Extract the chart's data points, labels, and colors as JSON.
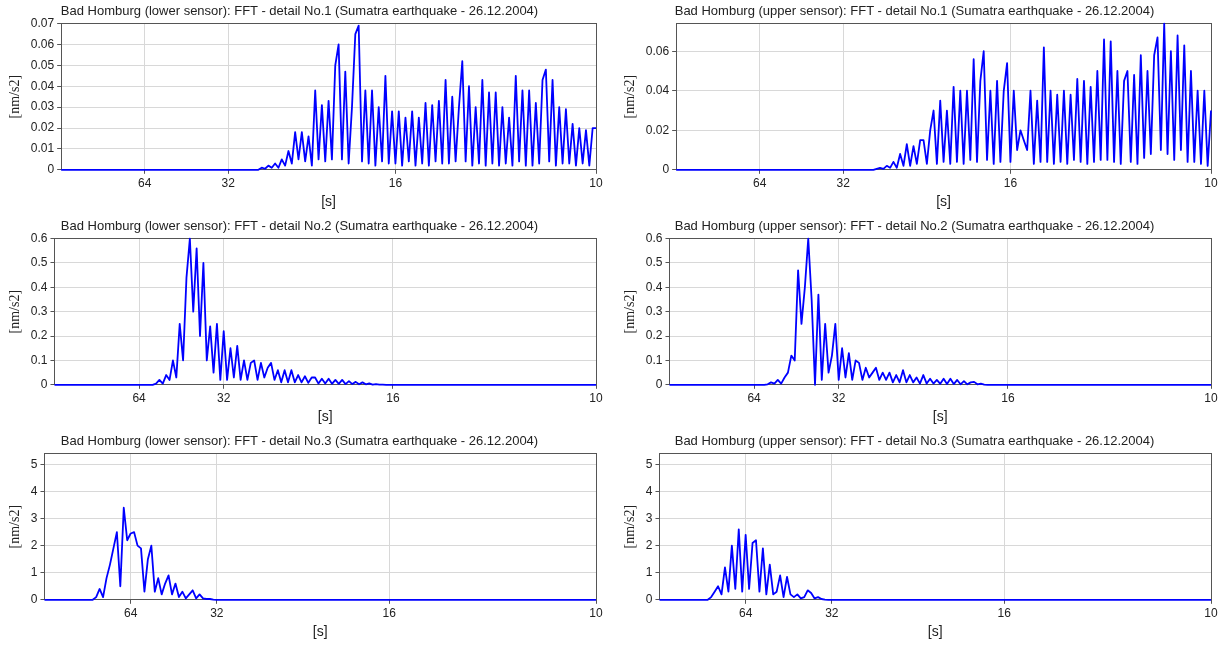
{
  "chart_data": [
    {
      "type": "line",
      "title": "Bad Homburg (lower sensor): FFT - detail No.1 (Sumatra earthquake - 26.12.2004)",
      "xlabel": "[s]",
      "ylabel": "[nm/s2]",
      "ylim": [
        0,
        0.07
      ],
      "yticks": [
        0,
        0.01,
        0.02,
        0.03,
        0.04,
        0.05,
        0.06,
        0.07
      ],
      "grid": true,
      "marker": "none",
      "categories": [
        null,
        null,
        null,
        null,
        null,
        null,
        null,
        null,
        null,
        null,
        null,
        null,
        null,
        null,
        null,
        null,
        null,
        null,
        null,
        null,
        null,
        null,
        null,
        null,
        null,
        "64",
        null,
        null,
        null,
        null,
        null,
        null,
        null,
        null,
        null,
        null,
        null,
        null,
        null,
        null,
        null,
        null,
        null,
        null,
        null,
        null,
        null,
        null,
        null,
        null,
        "32",
        null,
        null,
        null,
        null,
        null,
        null,
        null,
        null,
        null,
        null,
        null,
        null,
        null,
        null,
        null,
        null,
        null,
        null,
        null,
        null,
        null,
        null,
        null,
        null,
        null,
        null,
        null,
        null,
        null,
        null,
        null,
        null,
        null,
        null,
        null,
        null,
        null,
        null,
        null,
        null,
        null,
        null,
        null,
        null,
        null,
        null,
        null,
        null,
        null,
        "16",
        null,
        null,
        null,
        null,
        null,
        null,
        null,
        null,
        null,
        null,
        null,
        null,
        null,
        null,
        null,
        null,
        null,
        null,
        null,
        null,
        null,
        null,
        null,
        null,
        null,
        null,
        null,
        null,
        null,
        null,
        null,
        null,
        null,
        null,
        null,
        null,
        null,
        null,
        null,
        null,
        null,
        null,
        null,
        null,
        null,
        null,
        null,
        null,
        null,
        null,
        null,
        null,
        null,
        null,
        null,
        null,
        null,
        null,
        null,
        "10"
      ],
      "series": [
        {
          "color": "#0000ff",
          "values": [
            0,
            0,
            0,
            0,
            0,
            0,
            0,
            0,
            0,
            0,
            0,
            0,
            0,
            0,
            0,
            0,
            0,
            0,
            0,
            0,
            0,
            0,
            0,
            0,
            0,
            0,
            0,
            0,
            0,
            0,
            0,
            0,
            0,
            0,
            0,
            0,
            0,
            0,
            0,
            0,
            0,
            0,
            0,
            0,
            0,
            0,
            0,
            0,
            0,
            0,
            0,
            0,
            0,
            0,
            0,
            0,
            0,
            0,
            0,
            0,
            0.001,
            0.0005,
            0.002,
            0.001,
            0.003,
            0.001,
            0.005,
            0.002,
            0.009,
            0.003,
            0.018,
            0.005,
            0.018,
            0.004,
            0.016,
            0.002,
            0.038,
            0.005,
            0.031,
            0.004,
            0.033,
            0.005,
            0.05,
            0.06,
            0.005,
            0.047,
            0.003,
            0.03,
            0.065,
            0.069,
            0.004,
            0.038,
            0.003,
            0.038,
            0.002,
            0.03,
            0.004,
            0.045,
            0.003,
            0.028,
            0.003,
            0.028,
            0.002,
            0.025,
            0.004,
            0.028,
            0.002,
            0.025,
            0.003,
            0.032,
            0.002,
            0.031,
            0.004,
            0.033,
            0.003,
            0.043,
            0.003,
            0.035,
            0.004,
            0.03,
            0.052,
            0.004,
            0.04,
            0.002,
            0.03,
            0.003,
            0.043,
            0.002,
            0.037,
            0.003,
            0.037,
            0.002,
            0.03,
            0.003,
            0.025,
            0.002,
            0.045,
            0.004,
            0.038,
            0.002,
            0.038,
            0.002,
            0.032,
            0.003,
            0.043,
            0.048,
            0.004,
            0.043,
            0.002,
            0.03,
            0.003,
            0.029,
            0.003,
            0.022,
            0.002,
            0.02,
            0.003,
            0.019,
            0.002,
            0.02,
            0.02
          ]
        }
      ]
    },
    {
      "type": "line",
      "title": "Bad Homburg (upper sensor): FFT - detail No.1 (Sumatra earthquake - 26.12.2004)",
      "xlabel": "[s]",
      "ylabel": "[nm/s2]",
      "ylim": [
        0,
        0.074
      ],
      "yticks": [
        0,
        0.02,
        0.04,
        0.06
      ],
      "grid": true,
      "marker": "none",
      "categories": [
        null,
        null,
        null,
        null,
        null,
        null,
        null,
        null,
        null,
        null,
        null,
        null,
        null,
        null,
        null,
        null,
        null,
        null,
        null,
        null,
        null,
        null,
        null,
        null,
        null,
        "64",
        null,
        null,
        null,
        null,
        null,
        null,
        null,
        null,
        null,
        null,
        null,
        null,
        null,
        null,
        null,
        null,
        null,
        null,
        null,
        null,
        null,
        null,
        null,
        null,
        "32",
        null,
        null,
        null,
        null,
        null,
        null,
        null,
        null,
        null,
        null,
        null,
        null,
        null,
        null,
        null,
        null,
        null,
        null,
        null,
        null,
        null,
        null,
        null,
        null,
        null,
        null,
        null,
        null,
        null,
        null,
        null,
        null,
        null,
        null,
        null,
        null,
        null,
        null,
        null,
        null,
        null,
        null,
        null,
        null,
        null,
        null,
        null,
        null,
        null,
        "16",
        null,
        null,
        null,
        null,
        null,
        null,
        null,
        null,
        null,
        null,
        null,
        null,
        null,
        null,
        null,
        null,
        null,
        null,
        null,
        null,
        null,
        null,
        null,
        null,
        null,
        null,
        null,
        null,
        null,
        null,
        null,
        null,
        null,
        null,
        null,
        null,
        null,
        null,
        null,
        null,
        null,
        null,
        null,
        null,
        null,
        null,
        null,
        null,
        null,
        null,
        null,
        null,
        null,
        null,
        null,
        null,
        null,
        null,
        null,
        "10"
      ],
      "series": [
        {
          "color": "#0000ff",
          "values": [
            0,
            0,
            0,
            0,
            0,
            0,
            0,
            0,
            0,
            0,
            0,
            0,
            0,
            0,
            0,
            0,
            0,
            0,
            0,
            0,
            0,
            0,
            0,
            0,
            0,
            0,
            0,
            0,
            0,
            0,
            0,
            0,
            0,
            0,
            0,
            0,
            0,
            0,
            0,
            0,
            0,
            0,
            0,
            0,
            0,
            0,
            0,
            0,
            0,
            0,
            0,
            0,
            0,
            0,
            0,
            0,
            0,
            0,
            0,
            0,
            0.0005,
            0.001,
            0.0005,
            0.002,
            0.001,
            0.004,
            0.001,
            0.008,
            0.002,
            0.013,
            0.002,
            0.012,
            0.003,
            0.015,
            0.015,
            0.003,
            0.02,
            0.03,
            0.003,
            0.035,
            0.004,
            0.03,
            0.003,
            0.042,
            0.004,
            0.04,
            0.003,
            0.04,
            0.005,
            0.056,
            0.004,
            0.045,
            0.06,
            0.005,
            0.04,
            0.003,
            0.045,
            0.004,
            0.04,
            0.054,
            0.004,
            0.04,
            0.01,
            0.02,
            0.015,
            0.01,
            0.04,
            0.003,
            0.035,
            0.004,
            0.062,
            0.004,
            0.04,
            0.003,
            0.038,
            0.004,
            0.04,
            0.003,
            0.038,
            0.005,
            0.046,
            0.004,
            0.045,
            0.003,
            0.042,
            0.004,
            0.05,
            0.005,
            0.066,
            0.005,
            0.065,
            0.004,
            0.05,
            0.003,
            0.045,
            0.05,
            0.004,
            0.048,
            0.003,
            0.058,
            0.006,
            0.05,
            0.008,
            0.058,
            0.067,
            0.01,
            0.074,
            0.008,
            0.06,
            0.005,
            0.068,
            0.01,
            0.063,
            0.004,
            0.05,
            0.004,
            0.04,
            0.003,
            0.04,
            0.002,
            0.03
          ]
        }
      ]
    },
    {
      "type": "line",
      "title": "Bad Homburg (lower sensor): FFT - detail No.2 (Sumatra earthquake - 26.12.2004)",
      "xlabel": "[s]",
      "ylabel": "[nm/s2]",
      "ylim": [
        0,
        0.6
      ],
      "yticks": [
        0,
        0.1,
        0.2,
        0.3,
        0.4,
        0.5,
        0.6
      ],
      "grid": true,
      "marker": "none",
      "categories": [
        null,
        null,
        null,
        null,
        null,
        null,
        null,
        null,
        null,
        null,
        null,
        null,
        null,
        null,
        null,
        null,
        null,
        null,
        null,
        null,
        null,
        null,
        null,
        null,
        null,
        "64",
        null,
        null,
        null,
        null,
        null,
        null,
        null,
        null,
        null,
        null,
        null,
        null,
        null,
        null,
        null,
        null,
        null,
        null,
        null,
        null,
        null,
        null,
        null,
        null,
        "32",
        null,
        null,
        null,
        null,
        null,
        null,
        null,
        null,
        null,
        null,
        null,
        null,
        null,
        null,
        null,
        null,
        null,
        null,
        null,
        null,
        null,
        null,
        null,
        null,
        null,
        null,
        null,
        null,
        null,
        null,
        null,
        null,
        null,
        null,
        null,
        null,
        null,
        null,
        null,
        null,
        null,
        null,
        null,
        null,
        null,
        null,
        null,
        null,
        null,
        "16",
        null,
        null,
        null,
        null,
        null,
        null,
        null,
        null,
        null,
        null,
        null,
        null,
        null,
        null,
        null,
        null,
        null,
        null,
        null,
        null,
        null,
        null,
        null,
        null,
        null,
        null,
        null,
        null,
        null,
        null,
        null,
        null,
        null,
        null,
        null,
        null,
        null,
        null,
        null,
        null,
        null,
        null,
        null,
        null,
        null,
        null,
        null,
        null,
        null,
        null,
        null,
        null,
        null,
        null,
        null,
        null,
        null,
        null,
        null,
        "10"
      ],
      "series": [
        {
          "color": "#0000ff",
          "values": [
            0,
            0,
            0,
            0,
            0,
            0,
            0,
            0,
            0,
            0,
            0,
            0,
            0,
            0,
            0,
            0,
            0,
            0,
            0,
            0,
            0,
            0,
            0,
            0,
            0,
            0,
            0,
            0,
            0,
            0,
            0.005,
            0.02,
            0.005,
            0.04,
            0.02,
            0.1,
            0.03,
            0.25,
            0.1,
            0.44,
            0.6,
            0.3,
            0.56,
            0.2,
            0.5,
            0.1,
            0.24,
            0.05,
            0.25,
            0.02,
            0.22,
            0.02,
            0.15,
            0.03,
            0.16,
            0.02,
            0.1,
            0.02,
            0.09,
            0.1,
            0.02,
            0.09,
            0.03,
            0.07,
            0.09,
            0.02,
            0.06,
            0.01,
            0.06,
            0.01,
            0.06,
            0.01,
            0.04,
            0.01,
            0.035,
            0.008,
            0.03,
            0.03,
            0.005,
            0.025,
            0.005,
            0.025,
            0.004,
            0.02,
            0.004,
            0.02,
            0.003,
            0.015,
            0.003,
            0.012,
            0.002,
            0.01,
            0.002,
            0.006,
            0.001,
            0.003,
            0.001,
            0.001,
            0,
            0,
            0,
            0,
            0,
            0,
            0,
            0,
            0,
            0,
            0,
            0,
            0,
            0,
            0,
            0,
            0,
            0,
            0,
            0,
            0,
            0,
            0,
            0,
            0,
            0,
            0,
            0,
            0,
            0,
            0,
            0,
            0,
            0,
            0,
            0,
            0,
            0,
            0,
            0,
            0,
            0,
            0,
            0,
            0,
            0,
            0,
            0,
            0,
            0,
            0,
            0,
            0,
            0,
            0,
            0,
            0,
            0,
            0,
            0,
            0,
            0,
            0
          ]
        }
      ]
    },
    {
      "type": "line",
      "title": "Bad Homburg (upper sensor): FFT - detail No.2 (Sumatra earthquake - 26.12.2004)",
      "xlabel": "[s]",
      "ylabel": "[nm/s2]",
      "ylim": [
        0,
        0.6
      ],
      "yticks": [
        0,
        0.1,
        0.2,
        0.3,
        0.4,
        0.5,
        0.6
      ],
      "grid": true,
      "marker": "none",
      "categories": [
        null,
        null,
        null,
        null,
        null,
        null,
        null,
        null,
        null,
        null,
        null,
        null,
        null,
        null,
        null,
        null,
        null,
        null,
        null,
        null,
        null,
        null,
        null,
        null,
        null,
        "64",
        null,
        null,
        null,
        null,
        null,
        null,
        null,
        null,
        null,
        null,
        null,
        null,
        null,
        null,
        null,
        null,
        null,
        null,
        null,
        null,
        null,
        null,
        null,
        null,
        "32",
        null,
        null,
        null,
        null,
        null,
        null,
        null,
        null,
        null,
        null,
        null,
        null,
        null,
        null,
        null,
        null,
        null,
        null,
        null,
        null,
        null,
        null,
        null,
        null,
        null,
        null,
        null,
        null,
        null,
        null,
        null,
        null,
        null,
        null,
        null,
        null,
        null,
        null,
        null,
        null,
        null,
        null,
        null,
        null,
        null,
        null,
        null,
        null,
        null,
        "16",
        null,
        null,
        null,
        null,
        null,
        null,
        null,
        null,
        null,
        null,
        null,
        null,
        null,
        null,
        null,
        null,
        null,
        null,
        null,
        null,
        null,
        null,
        null,
        null,
        null,
        null,
        null,
        null,
        null,
        null,
        null,
        null,
        null,
        null,
        null,
        null,
        null,
        null,
        null,
        null,
        null,
        null,
        null,
        null,
        null,
        null,
        null,
        null,
        null,
        null,
        null,
        null,
        null,
        null,
        null,
        null,
        null,
        null,
        null,
        "10"
      ],
      "series": [
        {
          "color": "#0000ff",
          "values": [
            0,
            0,
            0,
            0,
            0,
            0,
            0,
            0,
            0,
            0,
            0,
            0,
            0,
            0,
            0,
            0,
            0,
            0,
            0,
            0,
            0,
            0,
            0,
            0,
            0,
            0,
            0,
            0,
            0,
            0.002,
            0.01,
            0.005,
            0.02,
            0.005,
            0.03,
            0.05,
            0.12,
            0.1,
            0.47,
            0.25,
            0.4,
            0.6,
            0.35,
            0,
            0.37,
            0.02,
            0.25,
            0.05,
            0.12,
            0.25,
            0.02,
            0.15,
            0.03,
            0.13,
            0.02,
            0.1,
            0.09,
            0.02,
            0.07,
            0.03,
            0.05,
            0.07,
            0.02,
            0.05,
            0.02,
            0.05,
            0.01,
            0.04,
            0.01,
            0.06,
            0.01,
            0.04,
            0.01,
            0.03,
            0.005,
            0.04,
            0.005,
            0.025,
            0.005,
            0.02,
            0.004,
            0.025,
            0.003,
            0.025,
            0.003,
            0.02,
            0.002,
            0.015,
            0.002,
            0.01,
            0.012,
            0.002,
            0.005,
            0.001,
            0,
            0,
            0,
            0,
            0,
            0,
            0,
            0,
            0,
            0,
            0,
            0,
            0,
            0,
            0,
            0,
            0,
            0,
            0,
            0,
            0,
            0,
            0,
            0,
            0,
            0,
            0,
            0,
            0,
            0,
            0,
            0,
            0,
            0,
            0,
            0,
            0,
            0,
            0,
            0,
            0,
            0,
            0,
            0,
            0,
            0,
            0,
            0,
            0,
            0,
            0,
            0,
            0,
            0,
            0,
            0,
            0,
            0,
            0,
            0,
            0,
            0,
            0,
            0,
            0,
            0,
            0
          ]
        }
      ]
    },
    {
      "type": "line",
      "title": "Bad Homburg (lower sensor): FFT - detail No.3 (Sumatra earthquake - 26.12.2004)",
      "xlabel": "[s]",
      "ylabel": "[nm/s2]",
      "ylim": [
        0,
        5.4
      ],
      "yticks": [
        0,
        1,
        2,
        3,
        4,
        5
      ],
      "grid": true,
      "marker": "none",
      "categories": [
        null,
        null,
        null,
        null,
        null,
        null,
        null,
        null,
        null,
        null,
        null,
        null,
        null,
        null,
        null,
        null,
        null,
        null,
        null,
        null,
        null,
        null,
        null,
        null,
        null,
        "64",
        null,
        null,
        null,
        null,
        null,
        null,
        null,
        null,
        null,
        null,
        null,
        null,
        null,
        null,
        null,
        null,
        null,
        null,
        null,
        null,
        null,
        null,
        null,
        null,
        "32",
        null,
        null,
        null,
        null,
        null,
        null,
        null,
        null,
        null,
        null,
        null,
        null,
        null,
        null,
        null,
        null,
        null,
        null,
        null,
        null,
        null,
        null,
        null,
        null,
        null,
        null,
        null,
        null,
        null,
        null,
        null,
        null,
        null,
        null,
        null,
        null,
        null,
        null,
        null,
        null,
        null,
        null,
        null,
        null,
        null,
        null,
        null,
        null,
        null,
        "16",
        null,
        null,
        null,
        null,
        null,
        null,
        null,
        null,
        null,
        null,
        null,
        null,
        null,
        null,
        null,
        null,
        null,
        null,
        null,
        null,
        null,
        null,
        null,
        null,
        null,
        null,
        null,
        null,
        null,
        null,
        null,
        null,
        null,
        null,
        null,
        null,
        null,
        null,
        null,
        null,
        null,
        null,
        null,
        null,
        null,
        null,
        null,
        null,
        null,
        null,
        null,
        null,
        null,
        null,
        null,
        null,
        null,
        null,
        null,
        "10"
      ],
      "series": [
        {
          "color": "#0000ff",
          "values": [
            0,
            0,
            0,
            0,
            0,
            0,
            0,
            0,
            0,
            0,
            0,
            0,
            0,
            0,
            0,
            0.1,
            0.4,
            0.1,
            0.8,
            1.3,
            1.9,
            2.5,
            0.5,
            3.4,
            2.2,
            2.45,
            2.5,
            2.0,
            1.9,
            0.3,
            1.5,
            2.0,
            0.3,
            0.8,
            0.2,
            0.6,
            0.9,
            0.2,
            0.6,
            0.1,
            0.3,
            0.05,
            0.2,
            0.35,
            0.05,
            0.2,
            0.05,
            0.03,
            0.03,
            0.01,
            0,
            0,
            0,
            0,
            0,
            0,
            0,
            0,
            0,
            0,
            0,
            0,
            0,
            0,
            0,
            0,
            0,
            0,
            0,
            0,
            0,
            0,
            0,
            0,
            0,
            0,
            0,
            0,
            0,
            0,
            0,
            0,
            0,
            0,
            0,
            0,
            0,
            0,
            0,
            0,
            0,
            0,
            0,
            0,
            0,
            0,
            0,
            0,
            0,
            0,
            0,
            0,
            0,
            0,
            0,
            0,
            0,
            0,
            0,
            0,
            0,
            0,
            0,
            0,
            0,
            0,
            0,
            0,
            0,
            0,
            0,
            0,
            0,
            0,
            0,
            0,
            0,
            0,
            0,
            0,
            0,
            0,
            0,
            0,
            0,
            0,
            0,
            0,
            0,
            0,
            0,
            0,
            0,
            0,
            0,
            0,
            0,
            0,
            0,
            0,
            0,
            0,
            0,
            0,
            0,
            0,
            0,
            0,
            0,
            0,
            0
          ]
        }
      ]
    },
    {
      "type": "line",
      "title": "Bad Homburg (upper sensor): FFT - detail No.3 (Sumatra earthquake - 26.12.2004)",
      "xlabel": "[s]",
      "ylabel": "[nm/s2]",
      "ylim": [
        0,
        5.4
      ],
      "yticks": [
        0,
        1,
        2,
        3,
        4,
        5
      ],
      "grid": true,
      "marker": "none",
      "categories": [
        null,
        null,
        null,
        null,
        null,
        null,
        null,
        null,
        null,
        null,
        null,
        null,
        null,
        null,
        null,
        null,
        null,
        null,
        null,
        null,
        null,
        null,
        null,
        null,
        null,
        "64",
        null,
        null,
        null,
        null,
        null,
        null,
        null,
        null,
        null,
        null,
        null,
        null,
        null,
        null,
        null,
        null,
        null,
        null,
        null,
        null,
        null,
        null,
        null,
        null,
        "32",
        null,
        null,
        null,
        null,
        null,
        null,
        null,
        null,
        null,
        null,
        null,
        null,
        null,
        null,
        null,
        null,
        null,
        null,
        null,
        null,
        null,
        null,
        null,
        null,
        null,
        null,
        null,
        null,
        null,
        null,
        null,
        null,
        null,
        null,
        null,
        null,
        null,
        null,
        null,
        null,
        null,
        null,
        null,
        null,
        null,
        null,
        null,
        null,
        null,
        "16",
        null,
        null,
        null,
        null,
        null,
        null,
        null,
        null,
        null,
        null,
        null,
        null,
        null,
        null,
        null,
        null,
        null,
        null,
        null,
        null,
        null,
        null,
        null,
        null,
        null,
        null,
        null,
        null,
        null,
        null,
        null,
        null,
        null,
        null,
        null,
        null,
        null,
        null,
        null,
        null,
        null,
        null,
        null,
        null,
        null,
        null,
        null,
        null,
        null,
        null,
        null,
        null,
        null,
        null,
        null,
        null,
        null,
        null,
        null,
        "10"
      ],
      "series": [
        {
          "color": "#0000ff",
          "values": [
            0,
            0,
            0,
            0,
            0,
            0,
            0,
            0,
            0,
            0,
            0,
            0,
            0,
            0,
            0,
            0.1,
            0.3,
            0.5,
            0.2,
            1.2,
            0.3,
            2.0,
            0.4,
            2.6,
            0.3,
            2.4,
            0.4,
            2.1,
            2.2,
            0.3,
            1.9,
            0.2,
            1.3,
            0.2,
            0.3,
            0.9,
            0.1,
            0.85,
            0.2,
            0.1,
            0.2,
            0.05,
            0.1,
            0.35,
            0.25,
            0.05,
            0.1,
            0.03,
            0.01,
            0,
            0,
            0,
            0,
            0,
            0,
            0,
            0,
            0,
            0,
            0,
            0,
            0,
            0,
            0,
            0,
            0,
            0,
            0,
            0,
            0,
            0,
            0,
            0,
            0,
            0,
            0,
            0,
            0,
            0,
            0,
            0,
            0,
            0,
            0,
            0,
            0,
            0,
            0,
            0,
            0,
            0,
            0,
            0,
            0,
            0,
            0,
            0,
            0,
            0,
            0,
            0,
            0,
            0,
            0,
            0,
            0,
            0,
            0,
            0,
            0,
            0,
            0,
            0,
            0,
            0,
            0,
            0,
            0,
            0,
            0,
            0,
            0,
            0,
            0,
            0,
            0,
            0,
            0,
            0,
            0,
            0,
            0,
            0,
            0,
            0,
            0,
            0,
            0,
            0,
            0,
            0,
            0,
            0,
            0,
            0,
            0,
            0,
            0,
            0,
            0,
            0,
            0,
            0,
            0,
            0,
            0,
            0,
            0,
            0,
            0,
            0
          ]
        }
      ]
    }
  ]
}
